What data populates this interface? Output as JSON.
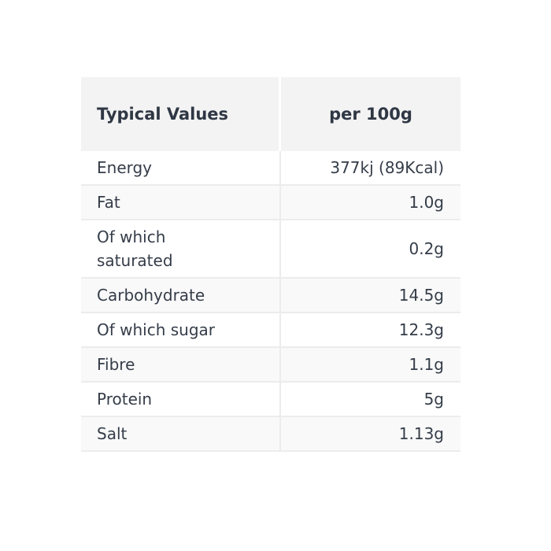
{
  "table": {
    "header": {
      "col1": "Typical Values",
      "col2": "per 100g"
    },
    "rows": [
      {
        "label": "Energy",
        "value": "377kj (89Kcal)"
      },
      {
        "label": "Fat",
        "value": "1.0g"
      },
      {
        "label": "Of which saturated",
        "value": "0.2g"
      },
      {
        "label": "Carbohydrate",
        "value": "14.5g"
      },
      {
        "label": "Of which sugar",
        "value": "12.3g"
      },
      {
        "label": "Fibre",
        "value": "1.1g"
      },
      {
        "label": "Protein",
        "value": "5g"
      },
      {
        "label": "Salt",
        "value": "1.13g"
      }
    ]
  },
  "colors": {
    "header_bg": "#f3f3f3",
    "stripe_bg": "#f9f9f9",
    "row_bg": "#ffffff",
    "border": "#ececec",
    "text": "#353d49"
  },
  "chart_data": {
    "type": "table",
    "title": "Nutrition typical values per 100g",
    "columns": [
      "Typical Values",
      "per 100g"
    ],
    "rows": [
      [
        "Energy",
        "377kj (89Kcal)"
      ],
      [
        "Fat",
        "1.0g"
      ],
      [
        "Of which saturated",
        "0.2g"
      ],
      [
        "Carbohydrate",
        "14.5g"
      ],
      [
        "Of which sugar",
        "12.3g"
      ],
      [
        "Fibre",
        "1.1g"
      ],
      [
        "Protein",
        "5g"
      ],
      [
        "Salt",
        "1.13g"
      ]
    ],
    "layout": {
      "striped_rows": true,
      "value_alignment": "right",
      "header_alignment": [
        "left",
        "center"
      ]
    }
  }
}
